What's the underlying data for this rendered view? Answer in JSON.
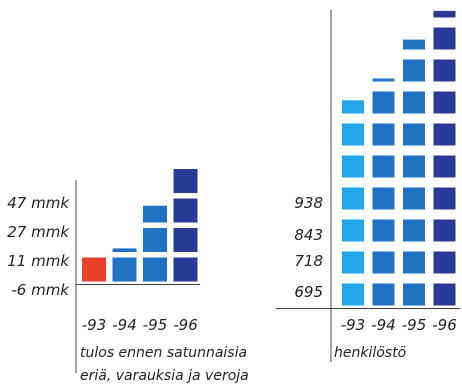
{
  "chart_data": [
    {
      "type": "bar",
      "style": "stacked squares",
      "categories": [
        "-93",
        "-94",
        "-95",
        "-96"
      ],
      "values": [
        -6,
        11,
        27,
        47
      ],
      "value_labels": [
        "-6 mmk",
        "11 mmk",
        "27 mmk",
        "47 mmk"
      ],
      "square_counts": [
        1,
        1.15,
        2.7,
        4.0
      ],
      "colors": [
        "#e8402a",
        "#1f73c2",
        "#1f73c2",
        "#2b3a94"
      ],
      "caption_lines": [
        "tulos ennen satunnaisia",
        "eriä, varauksia ja veroja"
      ]
    },
    {
      "type": "bar",
      "style": "stacked squares",
      "categories": [
        "-93",
        "-94",
        "-95",
        "-96"
      ],
      "values": [
        695,
        718,
        843,
        938
      ],
      "value_labels": [
        "695",
        "718",
        "843",
        "938"
      ],
      "square_counts": [
        6.6,
        7.1,
        8.45,
        9.3
      ],
      "colors": [
        "#22a6e8",
        "#1f73c2",
        "#1f73c2",
        "#2b3a94"
      ],
      "caption_lines": [
        "henkilöstö"
      ]
    }
  ]
}
